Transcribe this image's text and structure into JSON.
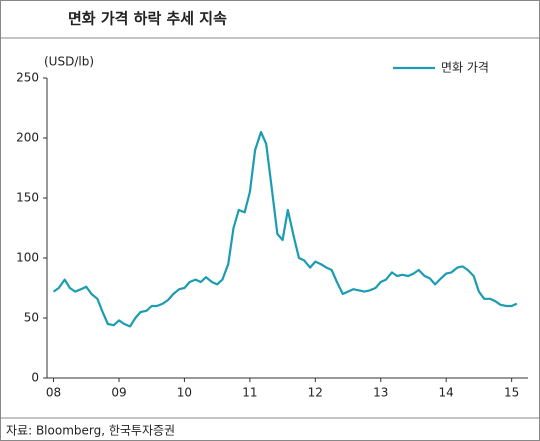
{
  "chart_data": {
    "type": "line",
    "title": "면화 가격 하락 추세 지속",
    "y_label": "(USD/lb)",
    "source": "자료: Bloomberg, 한국투자증권",
    "legend": "upper right",
    "grid": false,
    "xlim": [
      2007.9,
      2015.25
    ],
    "xticks": [
      {
        "value": 2008,
        "label": "08"
      },
      {
        "value": 2009,
        "label": "09"
      },
      {
        "value": 2010,
        "label": "10"
      },
      {
        "value": 2011,
        "label": "11"
      },
      {
        "value": 2012,
        "label": "12"
      },
      {
        "value": 2013,
        "label": "13"
      },
      {
        "value": 2014,
        "label": "14"
      },
      {
        "value": 2015,
        "label": "15"
      }
    ],
    "ylim": [
      0,
      250
    ],
    "yticks": [
      0,
      50,
      100,
      150,
      200,
      250
    ],
    "x": [
      2008.0,
      2008.08,
      2008.17,
      2008.25,
      2008.33,
      2008.42,
      2008.5,
      2008.58,
      2008.67,
      2008.75,
      2008.83,
      2008.92,
      2009.0,
      2009.08,
      2009.17,
      2009.25,
      2009.33,
      2009.42,
      2009.5,
      2009.58,
      2009.67,
      2009.75,
      2009.83,
      2009.92,
      2010.0,
      2010.08,
      2010.17,
      2010.25,
      2010.33,
      2010.42,
      2010.5,
      2010.58,
      2010.67,
      2010.75,
      2010.83,
      2010.92,
      2011.0,
      2011.08,
      2011.17,
      2011.25,
      2011.33,
      2011.42,
      2011.5,
      2011.58,
      2011.67,
      2011.75,
      2011.83,
      2011.92,
      2012.0,
      2012.08,
      2012.17,
      2012.25,
      2012.33,
      2012.42,
      2012.5,
      2012.58,
      2012.67,
      2012.75,
      2012.83,
      2012.92,
      2013.0,
      2013.08,
      2013.17,
      2013.25,
      2013.33,
      2013.42,
      2013.5,
      2013.58,
      2013.67,
      2013.75,
      2013.83,
      2013.92,
      2014.0,
      2014.08,
      2014.17,
      2014.25,
      2014.33,
      2014.42,
      2014.5,
      2014.58,
      2014.67,
      2014.75,
      2014.83,
      2014.92,
      2015.0,
      2015.08
    ],
    "series": [
      {
        "name": "면화 가격",
        "color": "#1b9cb1",
        "values": [
          72,
          75,
          82,
          75,
          72,
          74,
          76,
          70,
          66,
          55,
          45,
          44,
          48,
          45,
          43,
          50,
          55,
          56,
          60,
          60,
          62,
          65,
          70,
          74,
          75,
          80,
          82,
          80,
          84,
          80,
          78,
          82,
          95,
          125,
          140,
          138,
          155,
          190,
          205,
          195,
          160,
          120,
          115,
          140,
          118,
          100,
          98,
          92,
          97,
          95,
          92,
          90,
          80,
          70,
          72,
          74,
          73,
          72,
          73,
          75,
          80,
          82,
          88,
          85,
          86,
          85,
          87,
          90,
          85,
          83,
          78,
          83,
          87,
          88,
          92,
          93,
          90,
          85,
          72,
          66,
          66,
          64,
          61,
          60,
          60,
          62
        ]
      }
    ]
  }
}
